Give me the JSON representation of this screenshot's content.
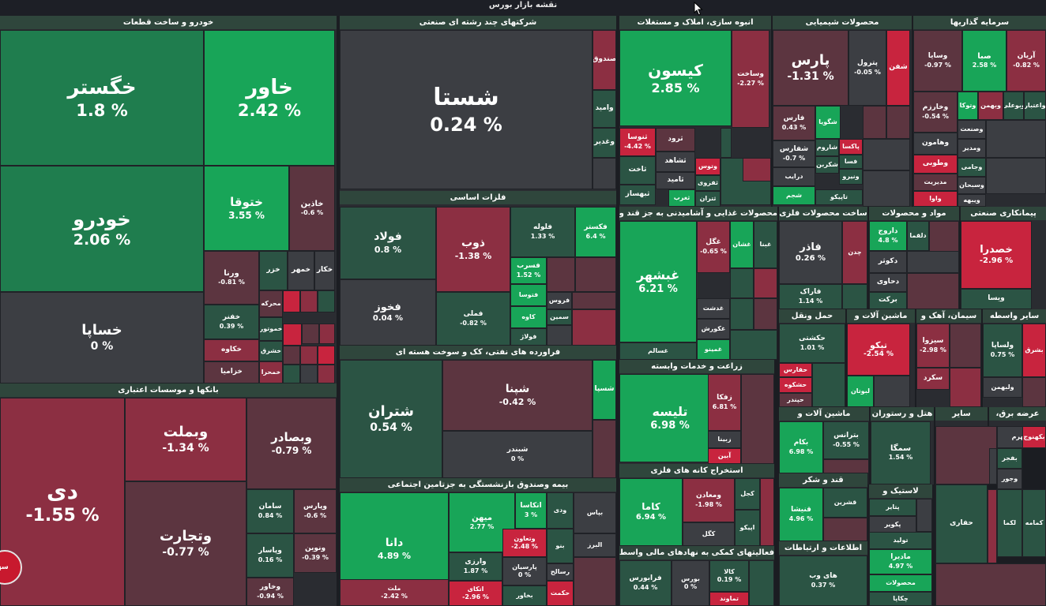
{
  "page": {
    "title": "نقشه بازار بورس",
    "brand_badge": "سهام"
  },
  "colors": {
    "strong_green": "#18a558",
    "green": "#1f7d4e",
    "dark_green": "#2b5444",
    "neutral": "#3c3e43",
    "dark_red": "#5c3540",
    "red": "#8c2f42",
    "strong_red": "#c8243e",
    "sector_header": "#2f463c"
  },
  "sectors": [
    {
      "key": "auto",
      "title": "خودرو و ساخت قطعات"
    },
    {
      "key": "multi",
      "title": "شرکتهای چند رشته ای صنعتی"
    },
    {
      "key": "mass",
      "title": "انبوه سازی، املاک و مستغلات"
    },
    {
      "key": "chem",
      "title": "محصولات شیمیایی"
    },
    {
      "key": "invest",
      "title": "سرمایه گذاریها"
    },
    {
      "key": "metals",
      "title": "فلزات اساسی"
    },
    {
      "key": "food",
      "title": "محصولات غذایی و آشامیدنی به جز قند و"
    },
    {
      "key": "metalprod",
      "title": "ساخت محصولات فلزی"
    },
    {
      "key": "materials",
      "title": "مواد و محصولات"
    },
    {
      "key": "pharma",
      "title": "پیمانکاری صنعتی"
    },
    {
      "key": "transport",
      "title": "حمل ونقل"
    },
    {
      "key": "machinery",
      "title": "ماشین آلات و"
    },
    {
      "key": "cement",
      "title": "سیمان، آهک و"
    },
    {
      "key": "other",
      "title": "سایر واسطه"
    },
    {
      "key": "banks",
      "title": "بانکها و موسسات اعتباری"
    },
    {
      "key": "refinery",
      "title": "فراورده های نفتی، کک و سوخت هسته ای"
    },
    {
      "key": "agri",
      "title": "زراعت و خدمات وابسته"
    },
    {
      "key": "mining",
      "title": "استخراج کانه های فلزی"
    },
    {
      "key": "machinery2",
      "title": "ماشین آلات و"
    },
    {
      "key": "hotel",
      "title": "هتل و رستوران"
    },
    {
      "key": "other2",
      "title": "سایر"
    },
    {
      "key": "offer",
      "title": "عرضه برق،"
    },
    {
      "key": "sugar",
      "title": "قند و شکر"
    },
    {
      "key": "rubber",
      "title": "لاستیک و"
    },
    {
      "key": "insurance",
      "title": "بیمه وصندوق بازنشستگی به جزتامین اجتماعی"
    },
    {
      "key": "support",
      "title": "فعالیتهای کمکی به نهادهای مالی واسط"
    },
    {
      "key": "info",
      "title": "اطلاعات و ارتباطات"
    }
  ],
  "tiles": [
    {
      "name": "خگستر",
      "pct": "1.8 %"
    },
    {
      "name": "خاور",
      "pct": "2.42 %"
    },
    {
      "name": "خودرو",
      "pct": "2.06 %"
    },
    {
      "name": "ختوقا",
      "pct": "3.55 %"
    },
    {
      "name": "خاذین",
      "pct": "-0.6 %"
    },
    {
      "name": "خساپا",
      "pct": "0 %"
    },
    {
      "name": "ورنا",
      "pct": "-0.81 %"
    },
    {
      "name": "خزر",
      "pct": ""
    },
    {
      "name": "خمهر",
      "pct": ""
    },
    {
      "name": "خکار",
      "pct": ""
    },
    {
      "name": "محرکه",
      "pct": ""
    },
    {
      "name": "خفنر",
      "pct": "0.39 %"
    },
    {
      "name": "خموتور",
      "pct": ""
    },
    {
      "name": "خکاوه",
      "pct": ""
    },
    {
      "name": "خشرق",
      "pct": ""
    },
    {
      "name": "خزامیا",
      "pct": ""
    },
    {
      "name": "خمحرا",
      "pct": ""
    },
    {
      "name": "شستا",
      "pct": "0.24 %"
    },
    {
      "name": "صندوق",
      "pct": ""
    },
    {
      "name": "وامید",
      "pct": ""
    },
    {
      "name": "وغدیر",
      "pct": ""
    },
    {
      "name": "کیسون",
      "pct": "2.85 %"
    },
    {
      "name": "وساخت",
      "pct": "-2.27 %"
    },
    {
      "name": "ثنوسا",
      "pct": "-4.42 %"
    },
    {
      "name": "ثرود",
      "pct": ""
    },
    {
      "name": "ثشاهد",
      "pct": ""
    },
    {
      "name": "ثاخت",
      "pct": ""
    },
    {
      "name": "ثامید",
      "pct": ""
    },
    {
      "name": "ثبهساز",
      "pct": ""
    },
    {
      "name": "وتوس",
      "pct": ""
    },
    {
      "name": "ثفزوی",
      "pct": ""
    },
    {
      "name": "ثغرب",
      "pct": ""
    },
    {
      "name": "ثتران",
      "pct": ""
    },
    {
      "name": "پارس",
      "pct": "-1.31 %"
    },
    {
      "name": "پترول",
      "pct": "-0.05 %"
    },
    {
      "name": "شفن",
      "pct": ""
    },
    {
      "name": "فارس",
      "pct": "0.43 %"
    },
    {
      "name": "شگویا",
      "pct": ""
    },
    {
      "name": "شفارس",
      "pct": "-0.7 %"
    },
    {
      "name": "شاروم",
      "pct": ""
    },
    {
      "name": "پاکسا",
      "pct": ""
    },
    {
      "name": "فسا",
      "pct": ""
    },
    {
      "name": "شکربن",
      "pct": ""
    },
    {
      "name": "درایب",
      "pct": ""
    },
    {
      "name": "ونیرو",
      "pct": ""
    },
    {
      "name": "شجم",
      "pct": ""
    },
    {
      "name": "تاپیکو",
      "pct": ""
    },
    {
      "name": "وسایا",
      "pct": "-0.97 %"
    },
    {
      "name": "صبا",
      "pct": "2.58 %"
    },
    {
      "name": "آریان",
      "pct": "-0.82 %"
    },
    {
      "name": "وخارزم",
      "pct": "-0.54 %"
    },
    {
      "name": "وتوکا",
      "pct": ""
    },
    {
      "name": "وبهمن",
      "pct": ""
    },
    {
      "name": "وبوعلی",
      "pct": ""
    },
    {
      "name": "واعتبار",
      "pct": ""
    },
    {
      "name": "وصنعت",
      "pct": ""
    },
    {
      "name": "وهامون",
      "pct": ""
    },
    {
      "name": "ومدیر",
      "pct": ""
    },
    {
      "name": "وطوبی",
      "pct": ""
    },
    {
      "name": "وجامی",
      "pct": ""
    },
    {
      "name": "مدیریت",
      "pct": ""
    },
    {
      "name": "وسبحان",
      "pct": ""
    },
    {
      "name": "واوا",
      "pct": ""
    },
    {
      "name": "ویبهه",
      "pct": ""
    },
    {
      "name": "فولاد",
      "pct": "0.8 %"
    },
    {
      "name": "ذوب",
      "pct": "-1.38 %"
    },
    {
      "name": "فلوله",
      "pct": "1.33 %"
    },
    {
      "name": "فکستر",
      "pct": "6.4 %"
    },
    {
      "name": "فخوز",
      "pct": "0.04 %"
    },
    {
      "name": "فسرب",
      "pct": "1.52 %"
    },
    {
      "name": "فتوسا",
      "pct": ""
    },
    {
      "name": "فملی",
      "pct": "-0.82 %"
    },
    {
      "name": "کاوه",
      "pct": ""
    },
    {
      "name": "فروس",
      "pct": ""
    },
    {
      "name": "سمین",
      "pct": ""
    },
    {
      "name": "فولاژ",
      "pct": ""
    },
    {
      "name": "غبشهر",
      "pct": "6.21 %"
    },
    {
      "name": "غگل",
      "pct": "-0.65 %"
    },
    {
      "name": "غشان",
      "pct": ""
    },
    {
      "name": "غبنا",
      "pct": ""
    },
    {
      "name": "غدشت",
      "pct": ""
    },
    {
      "name": "غکورش",
      "pct": ""
    },
    {
      "name": "غمینو",
      "pct": ""
    },
    {
      "name": "غسالم",
      "pct": ""
    },
    {
      "name": "فاذر",
      "pct": "0.26 %"
    },
    {
      "name": "چدن",
      "pct": ""
    },
    {
      "name": "فاراک",
      "pct": "1.14 %"
    },
    {
      "name": "داروج",
      "pct": "4.8 %"
    },
    {
      "name": "دلقما",
      "pct": ""
    },
    {
      "name": "دکوثر",
      "pct": ""
    },
    {
      "name": "دحاوی",
      "pct": ""
    },
    {
      "name": "برکت",
      "pct": ""
    },
    {
      "name": "خصدرا",
      "pct": "-2.96 %"
    },
    {
      "name": "ویسا",
      "pct": ""
    },
    {
      "name": "حکشتی",
      "pct": "1.01 %"
    },
    {
      "name": "تیکو",
      "pct": "-2.54 %"
    },
    {
      "name": "سیزوا",
      "pct": "-2.98 %"
    },
    {
      "name": "سکرد",
      "pct": ""
    },
    {
      "name": "ولساپا",
      "pct": "0.75 %"
    },
    {
      "name": "ولبهمن",
      "pct": ""
    },
    {
      "name": "بشرق",
      "pct": ""
    },
    {
      "name": "حفارس",
      "pct": ""
    },
    {
      "name": "حشکوه",
      "pct": ""
    },
    {
      "name": "حپندر",
      "pct": ""
    },
    {
      "name": "لبوتان",
      "pct": ""
    },
    {
      "name": "دی",
      "pct": "-1.55 %"
    },
    {
      "name": "وبملت",
      "pct": "-1.34 %"
    },
    {
      "name": "وبصادر",
      "pct": "-0.79 %"
    },
    {
      "name": "وتجارت",
      "pct": "-0.77 %"
    },
    {
      "name": "سامان",
      "pct": "0.84 %"
    },
    {
      "name": "وپارس",
      "pct": "-0.6 %"
    },
    {
      "name": "وپاسار",
      "pct": "0.16 %"
    },
    {
      "name": "ونوین",
      "pct": "-0.39 %"
    },
    {
      "name": "وخاور",
      "pct": "-0.94 %"
    },
    {
      "name": "شتران",
      "pct": "0.54 %"
    },
    {
      "name": "شپنا",
      "pct": "-0.42 %"
    },
    {
      "name": "شسپا",
      "pct": ""
    },
    {
      "name": "شبندر",
      "pct": "0 %"
    },
    {
      "name": "تلیسه",
      "pct": "6.98 %"
    },
    {
      "name": "زفکا",
      "pct": "6.81 %"
    },
    {
      "name": "زبینا",
      "pct": ""
    },
    {
      "name": "آبین",
      "pct": ""
    },
    {
      "name": "کاما",
      "pct": "6.94 %"
    },
    {
      "name": "ومعادن",
      "pct": "-1.98 %"
    },
    {
      "name": "کجل",
      "pct": ""
    },
    {
      "name": "کگل",
      "pct": ""
    },
    {
      "name": "اپیکو",
      "pct": ""
    },
    {
      "name": "بکام",
      "pct": "6.98 %"
    },
    {
      "name": "بترانس",
      "pct": "-0.55 %"
    },
    {
      "name": "سمگا",
      "pct": "1.54 %"
    },
    {
      "name": "بجهرم",
      "pct": ""
    },
    {
      "name": "بکهنوج",
      "pct": ""
    },
    {
      "name": "بفجر",
      "pct": ""
    },
    {
      "name": "وجور",
      "pct": ""
    },
    {
      "name": "قنیشا",
      "pct": "4.96 %"
    },
    {
      "name": "قشرین",
      "pct": ""
    },
    {
      "name": "پتایر",
      "pct": ""
    },
    {
      "name": "پکویر",
      "pct": ""
    },
    {
      "name": "حفاری",
      "pct": ""
    },
    {
      "name": "کمامه",
      "pct": ""
    },
    {
      "name": "لکما",
      "pct": ""
    },
    {
      "name": "دانا",
      "pct": "4.89 %"
    },
    {
      "name": "میهن",
      "pct": "2.77 %"
    },
    {
      "name": "اتکاسا",
      "pct": "3 %"
    },
    {
      "name": "ودی",
      "pct": ""
    },
    {
      "name": "بپاس",
      "pct": ""
    },
    {
      "name": "وتعاون",
      "pct": "-2.48 %"
    },
    {
      "name": "بنو",
      "pct": ""
    },
    {
      "name": "البرز",
      "pct": ""
    },
    {
      "name": "وارزی",
      "pct": "1.87 %"
    },
    {
      "name": "پارسیان",
      "pct": "0 %"
    },
    {
      "name": "رسالح",
      "pct": ""
    },
    {
      "name": "ملت",
      "pct": "-2.42 %"
    },
    {
      "name": "اتکای",
      "pct": "-2.96 %"
    },
    {
      "name": "بخاور",
      "pct": ""
    },
    {
      "name": "حکمت",
      "pct": ""
    },
    {
      "name": "فرابورس",
      "pct": "0.44 %"
    },
    {
      "name": "بورس",
      "pct": "0 %"
    },
    {
      "name": "کالا",
      "pct": "0.19 %"
    },
    {
      "name": "تماوند",
      "pct": ""
    },
    {
      "name": "های وب",
      "pct": "0.37 %"
    },
    {
      "name": "تولید",
      "pct": ""
    },
    {
      "name": "مادیرا",
      "pct": "4.97 %"
    },
    {
      "name": "محصولات",
      "pct": ""
    },
    {
      "name": "چکاپا",
      "pct": ""
    }
  ]
}
